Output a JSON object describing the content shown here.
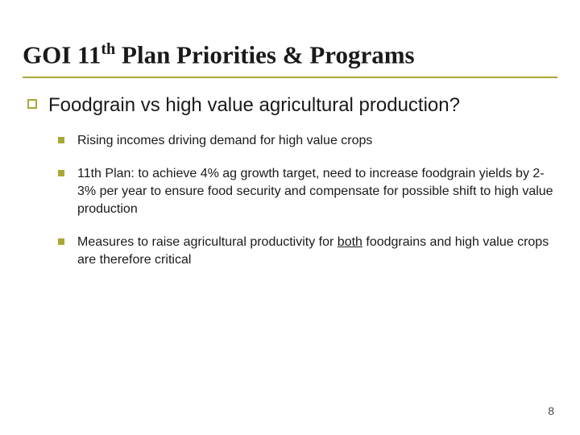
{
  "slide": {
    "title_pre": "GOI 11",
    "title_sup": "th",
    "title_post": " Plan Priorities & Programs",
    "title_fontsize": 31,
    "title_color": "#1a1a1a",
    "title_underline_color": "#a8a838",
    "bullet_l1": {
      "text": "Foodgrain vs high value agricultural production?",
      "fontsize": 24,
      "bullet_border_color": "#a8a838"
    },
    "sub_bullets": [
      {
        "text": "Rising incomes driving demand for high value crops"
      },
      {
        "text": "11th Plan: to achieve 4% ag growth target, need to increase foodgrain yields by 2-3% per year to ensure food security and compensate for possible shift to high value production"
      },
      {
        "prefix": "Measures to raise agricultural productivity for ",
        "underlined": "both",
        "suffix": " foodgrains and high value crops are therefore critical"
      }
    ],
    "sub_bullet_fontsize": 16,
    "sub_bullet_fill_color": "#a8a838",
    "page_number": "8",
    "page_number_fontsize": 14,
    "background_color": "#ffffff"
  }
}
